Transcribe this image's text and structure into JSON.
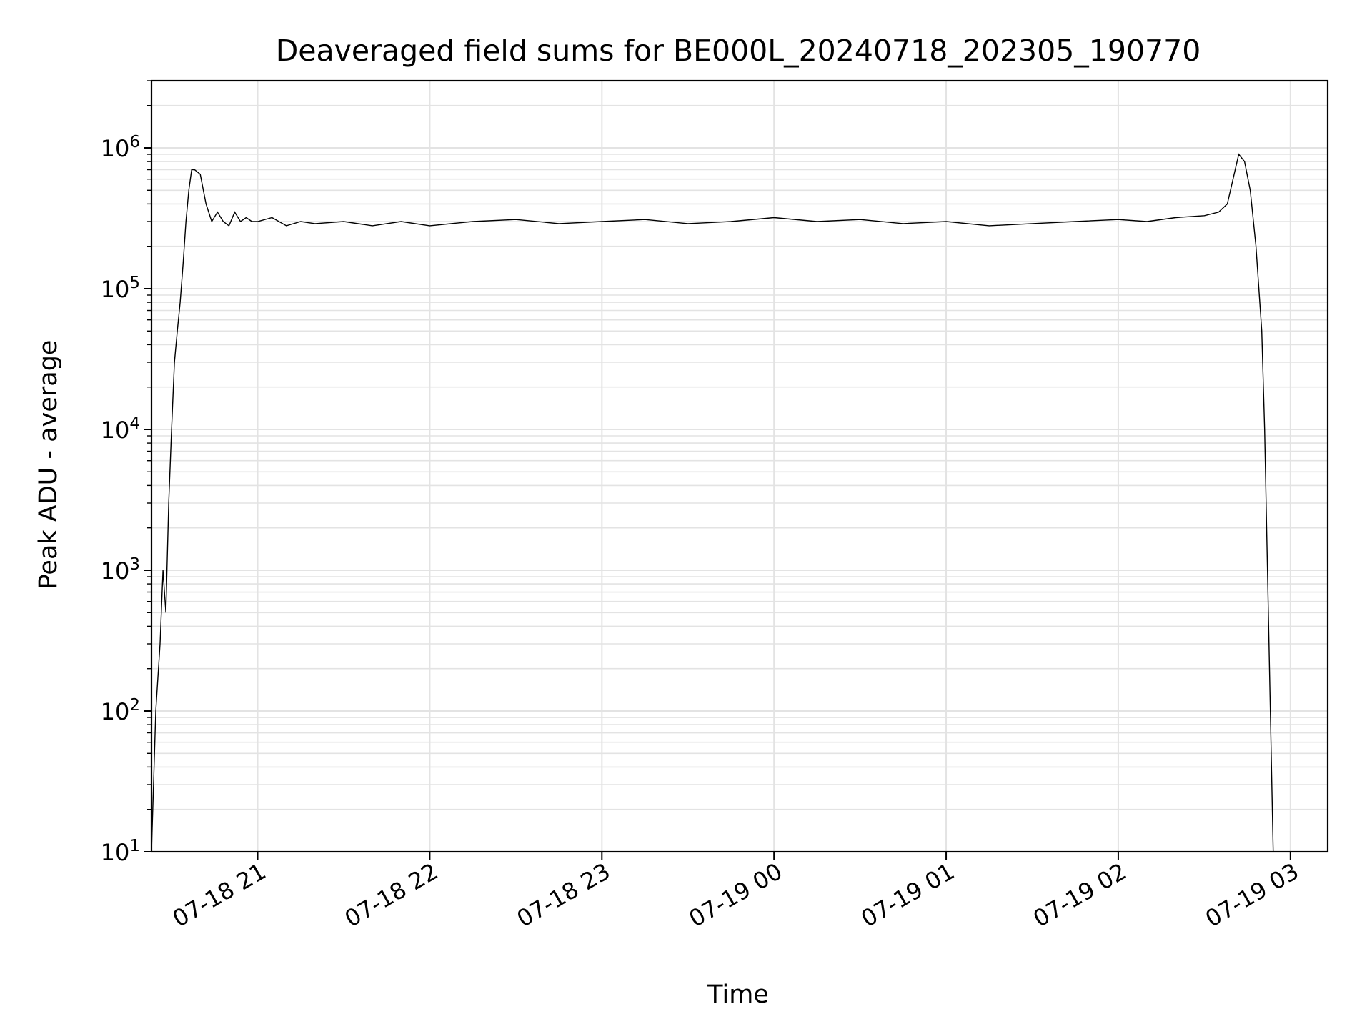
{
  "chart_data": {
    "type": "line",
    "title": "Deaveraged field sums for BE000L_20240718_202305_190770",
    "xlabel": "Time",
    "ylabel": "Peak ADU - average",
    "yscale": "log",
    "ylim": [
      10,
      3000000
    ],
    "xlim": [
      "2024-07-18 20:23:00",
      "2024-07-19 03:13:00"
    ],
    "grid": true,
    "line_color": "#000000",
    "grid_color": "#e3e3e3",
    "x_ticks": [
      {
        "value": "2024-07-18 21:00",
        "label": "07-18 21"
      },
      {
        "value": "2024-07-18 22:00",
        "label": "07-18 22"
      },
      {
        "value": "2024-07-18 23:00",
        "label": "07-18 23"
      },
      {
        "value": "2024-07-19 00:00",
        "label": "07-19 00"
      },
      {
        "value": "2024-07-19 01:00",
        "label": "07-19 01"
      },
      {
        "value": "2024-07-19 02:00",
        "label": "07-19 02"
      },
      {
        "value": "2024-07-19 03:00",
        "label": "07-19 03"
      }
    ],
    "y_ticks": [
      {
        "value": 10,
        "base": "10",
        "exp": "1"
      },
      {
        "value": 100,
        "base": "10",
        "exp": "2"
      },
      {
        "value": 1000,
        "base": "10",
        "exp": "3"
      },
      {
        "value": 10000,
        "base": "10",
        "exp": "4"
      },
      {
        "value": 100000,
        "base": "10",
        "exp": "5"
      },
      {
        "value": 1000000,
        "base": "10",
        "exp": "6"
      }
    ],
    "series": [
      {
        "x": [
          "2024-07-18 20:23:00",
          "2024-07-18 20:24:30",
          "2024-07-18 20:26:00",
          "2024-07-18 20:27:00",
          "2024-07-18 20:28:00",
          "2024-07-18 20:29:00",
          "2024-07-18 20:30:00",
          "2024-07-18 20:31:00",
          "2024-07-18 20:32:00",
          "2024-07-18 20:33:00",
          "2024-07-18 20:34:00",
          "2024-07-18 20:35:00",
          "2024-07-18 20:36:00",
          "2024-07-18 20:37:00",
          "2024-07-18 20:38:00",
          "2024-07-18 20:40:00",
          "2024-07-18 20:42:00",
          "2024-07-18 20:44:00",
          "2024-07-18 20:46:00",
          "2024-07-18 20:48:00",
          "2024-07-18 20:50:00",
          "2024-07-18 20:52:00",
          "2024-07-18 20:54:00",
          "2024-07-18 20:56:00",
          "2024-07-18 20:58:00",
          "2024-07-18 21:00:00",
          "2024-07-18 21:05:00",
          "2024-07-18 21:10:00",
          "2024-07-18 21:15:00",
          "2024-07-18 21:20:00",
          "2024-07-18 21:30:00",
          "2024-07-18 21:40:00",
          "2024-07-18 21:50:00",
          "2024-07-18 22:00:00",
          "2024-07-18 22:15:00",
          "2024-07-18 22:30:00",
          "2024-07-18 22:45:00",
          "2024-07-18 23:00:00",
          "2024-07-18 23:15:00",
          "2024-07-18 23:30:00",
          "2024-07-18 23:45:00",
          "2024-07-19 00:00:00",
          "2024-07-19 00:15:00",
          "2024-07-19 00:30:00",
          "2024-07-19 00:45:00",
          "2024-07-19 01:00:00",
          "2024-07-19 01:15:00",
          "2024-07-19 01:30:00",
          "2024-07-19 01:45:00",
          "2024-07-19 02:00:00",
          "2024-07-19 02:10:00",
          "2024-07-19 02:20:00",
          "2024-07-19 02:30:00",
          "2024-07-19 02:35:00",
          "2024-07-19 02:38:00",
          "2024-07-19 02:40:00",
          "2024-07-19 02:42:00",
          "2024-07-19 02:44:00",
          "2024-07-19 02:46:00",
          "2024-07-19 02:48:00",
          "2024-07-19 02:50:00",
          "2024-07-19 02:51:00",
          "2024-07-19 02:52:00",
          "2024-07-19 02:53:00",
          "2024-07-19 02:54:00"
        ],
        "y": [
          10,
          100,
          300,
          1000,
          500,
          3000,
          10000,
          30000,
          50000,
          80000,
          150000,
          300000,
          500000,
          700000,
          700000,
          650000,
          400000,
          300000,
          350000,
          300000,
          280000,
          350000,
          300000,
          320000,
          300000,
          300000,
          320000,
          280000,
          300000,
          290000,
          300000,
          280000,
          300000,
          280000,
          300000,
          310000,
          290000,
          300000,
          310000,
          290000,
          300000,
          320000,
          300000,
          310000,
          290000,
          300000,
          280000,
          290000,
          300000,
          310000,
          300000,
          320000,
          330000,
          350000,
          400000,
          600000,
          900000,
          800000,
          500000,
          200000,
          50000,
          10000,
          1000,
          100,
          10
        ]
      }
    ]
  }
}
